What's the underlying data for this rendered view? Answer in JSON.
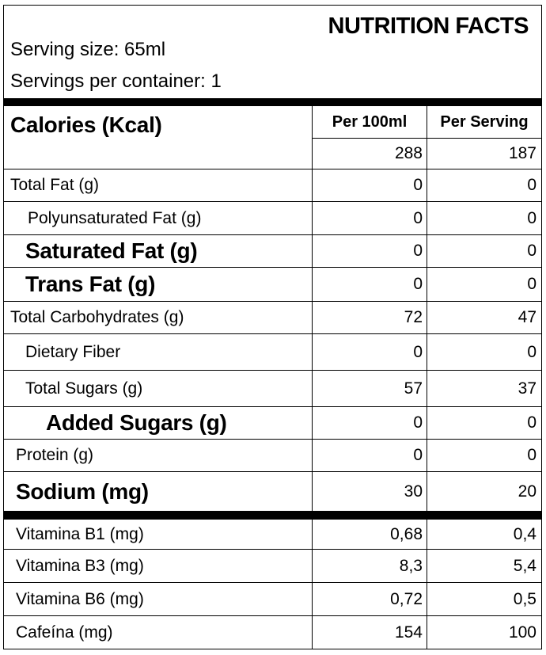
{
  "title": "NUTRITION FACTS",
  "serving_size": "Serving size: 65ml",
  "servings_per_container": "Servings per container: 1",
  "columns": {
    "per_100ml": "Per 100ml",
    "per_serving": "Per Serving"
  },
  "calories": {
    "label": "Calories (Kcal)",
    "per_100ml": "288",
    "per_serving": "187"
  },
  "nutrients": [
    {
      "label": "Total Fat (g)",
      "per_100ml": "0",
      "per_serving": "0"
    },
    {
      "label": "Polyunsaturated Fat (g)",
      "per_100ml": "0",
      "per_serving": "0"
    },
    {
      "label": "Saturated Fat (g)",
      "per_100ml": "0",
      "per_serving": "0"
    },
    {
      "label": "Trans Fat (g)",
      "per_100ml": "0",
      "per_serving": "0"
    },
    {
      "label": "Total Carbohydrates (g)",
      "per_100ml": "72",
      "per_serving": "47"
    },
    {
      "label": "Dietary Fiber",
      "per_100ml": "0",
      "per_serving": "0"
    },
    {
      "label": "Total Sugars (g)",
      "per_100ml": "57",
      "per_serving": "37"
    },
    {
      "label": "Added Sugars (g)",
      "per_100ml": "0",
      "per_serving": "0"
    },
    {
      "label": "Protein (g)",
      "per_100ml": "0",
      "per_serving": "0"
    },
    {
      "label": "Sodium (mg)",
      "per_100ml": "30",
      "per_serving": "20"
    }
  ],
  "vitamins": [
    {
      "label": "Vitamina B1 (mg)",
      "per_100ml": "0,68",
      "per_serving": "0,4"
    },
    {
      "label": "Vitamina B3 (mg)",
      "per_100ml": "8,3",
      "per_serving": "5,4"
    },
    {
      "label": "Vitamina B6 (mg)",
      "per_100ml": "0,72",
      "per_serving": "0,5"
    },
    {
      "label": "Cafeína (mg)",
      "per_100ml": "154",
      "per_serving": "100"
    }
  ]
}
